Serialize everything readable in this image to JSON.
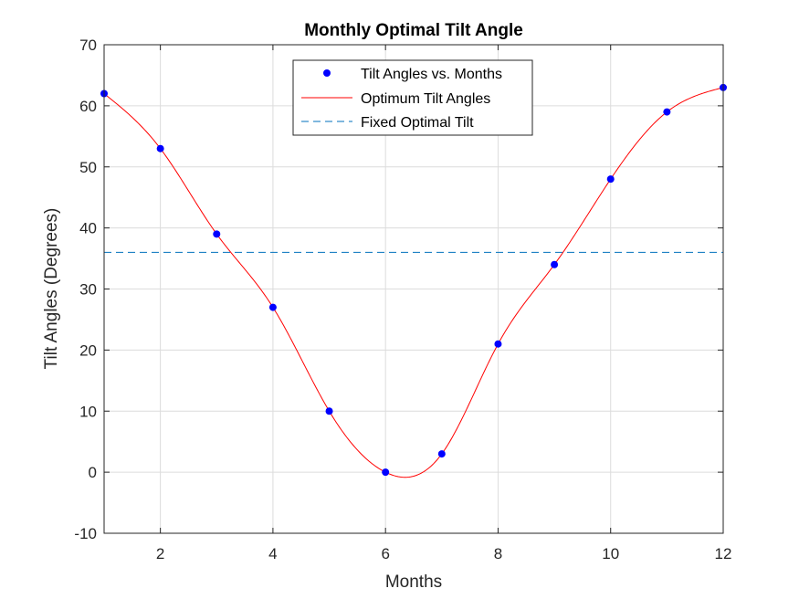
{
  "chart_data": {
    "type": "line",
    "title": "Monthly Optimal Tilt Angle",
    "xlabel": "Months",
    "ylabel": "Tilt Angles (Degrees)",
    "xlim": [
      1,
      12
    ],
    "ylim": [
      -10,
      70
    ],
    "xticks": [
      2,
      4,
      6,
      8,
      10,
      12
    ],
    "yticks": [
      -10,
      0,
      10,
      20,
      30,
      40,
      50,
      60,
      70
    ],
    "xtick_labels": [
      "2",
      "4",
      "6",
      "8",
      "10",
      "12"
    ],
    "ytick_labels": [
      "-10",
      "0",
      "10",
      "20",
      "30",
      "40",
      "50",
      "60",
      "70"
    ],
    "grid": true,
    "legend_position": "top-center",
    "series": [
      {
        "name": "Tilt Angles vs. Months",
        "style": "markers",
        "color": "#0000ff",
        "x": [
          1,
          2,
          3,
          4,
          5,
          6,
          7,
          8,
          9,
          10,
          11,
          12
        ],
        "y": [
          62,
          53,
          39,
          27,
          10,
          0,
          3,
          21,
          34,
          48,
          59,
          63
        ]
      },
      {
        "name": "Optimum Tilt Angles",
        "style": "smooth-line",
        "color": "#ff0000",
        "x": [
          1,
          2,
          3,
          4,
          5,
          6,
          7,
          8,
          9,
          10,
          11,
          12
        ],
        "y": [
          62,
          53,
          39,
          27,
          10,
          0,
          3,
          21,
          34,
          48,
          59,
          63
        ]
      },
      {
        "name": "Fixed Optimal Tilt",
        "style": "dashed-line",
        "color": "#0072bd",
        "y": 36
      }
    ]
  }
}
